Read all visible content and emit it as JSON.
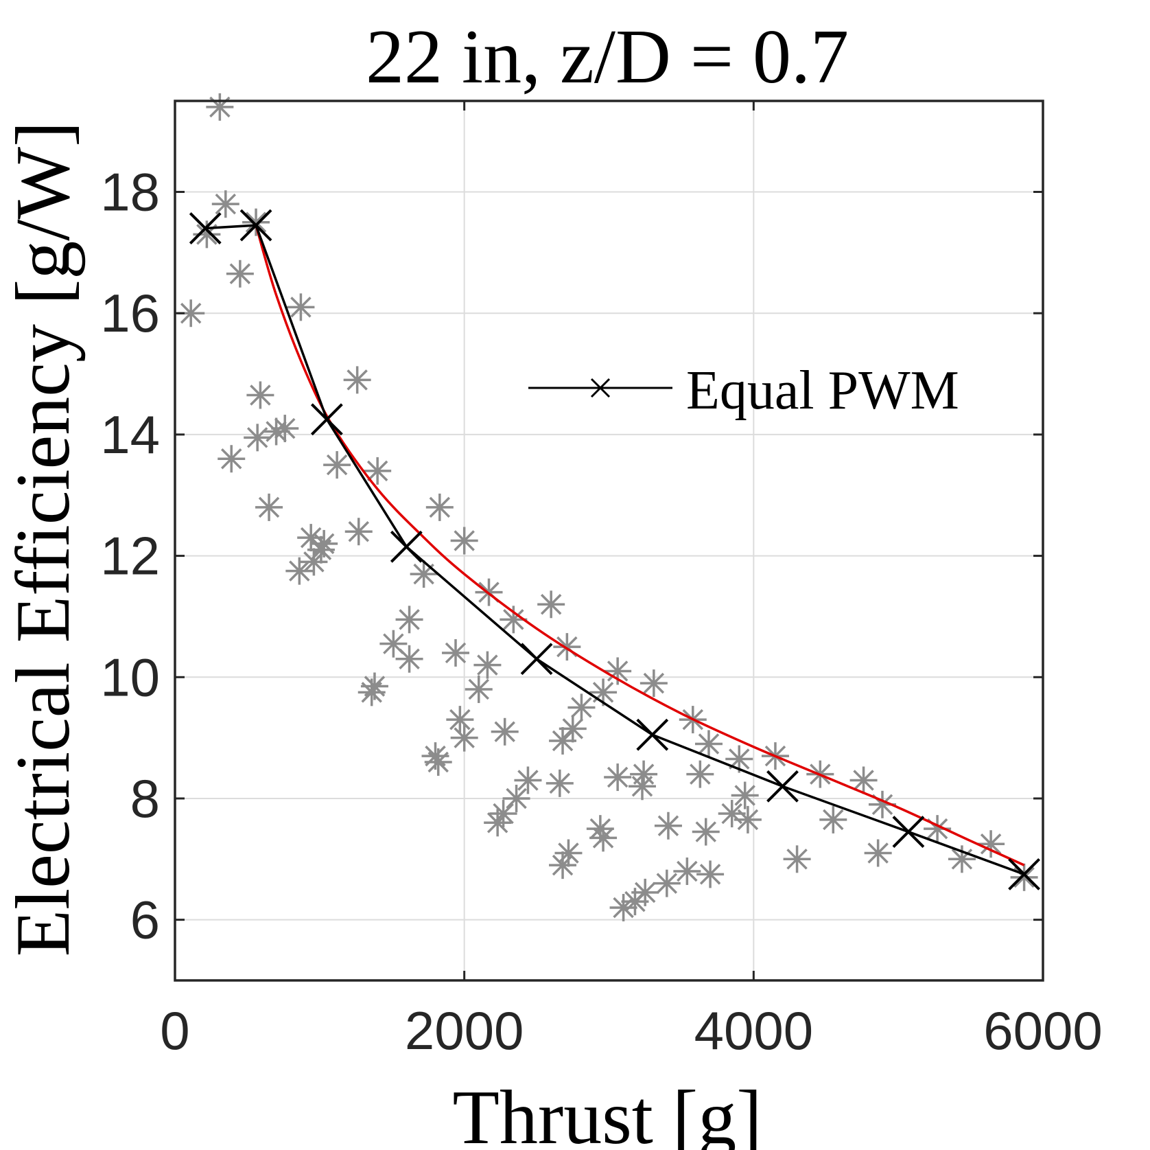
{
  "chart_data": {
    "type": "scatter",
    "title": "22 in, z/D = 0.7",
    "xlabel": "Thrust [g]",
    "ylabel": "Electrical Efficiency [g/W]",
    "xlim": [
      0,
      6000
    ],
    "ylim": [
      5,
      19.5
    ],
    "xticks": [
      0,
      2000,
      4000,
      6000
    ],
    "yticks": [
      6,
      8,
      10,
      12,
      14,
      16,
      18
    ],
    "grid": true,
    "legend": {
      "position": "upper-right-middle",
      "entries": [
        "Equal PWM"
      ]
    },
    "colors": {
      "scatter": "#8c8c8c",
      "equal_pwm": "#000000",
      "fit": "#e00000",
      "grid": "#dcdcdc",
      "axes": "#262626"
    },
    "series": [
      {
        "kind": "scatter",
        "marker": "asterisk",
        "points": [
          [
            310,
            19.4
          ],
          [
            350,
            17.8
          ],
          [
            220,
            17.3
          ],
          [
            560,
            17.5
          ],
          [
            450,
            16.65
          ],
          [
            110,
            16.0
          ],
          [
            870,
            16.1
          ],
          [
            1260,
            14.9
          ],
          [
            590,
            14.65
          ],
          [
            570,
            13.95
          ],
          [
            700,
            14.05
          ],
          [
            760,
            14.1
          ],
          [
            390,
            13.6
          ],
          [
            1120,
            13.5
          ],
          [
            1400,
            13.4
          ],
          [
            650,
            12.8
          ],
          [
            940,
            12.3
          ],
          [
            1030,
            12.2
          ],
          [
            1010,
            12.1
          ],
          [
            1270,
            12.4
          ],
          [
            860,
            11.75
          ],
          [
            960,
            11.9
          ],
          [
            1830,
            12.8
          ],
          [
            2000,
            12.25
          ],
          [
            1720,
            11.7
          ],
          [
            2170,
            11.4
          ],
          [
            2600,
            11.2
          ],
          [
            2340,
            10.95
          ],
          [
            1620,
            10.95
          ],
          [
            1510,
            10.55
          ],
          [
            1620,
            10.3
          ],
          [
            1940,
            10.4
          ],
          [
            2160,
            10.2
          ],
          [
            2710,
            10.5
          ],
          [
            1380,
            9.85
          ],
          [
            1360,
            9.75
          ],
          [
            2100,
            9.8
          ],
          [
            2960,
            9.75
          ],
          [
            3060,
            10.1
          ],
          [
            3310,
            9.9
          ],
          [
            2810,
            9.5
          ],
          [
            1970,
            9.3
          ],
          [
            2000,
            9.0
          ],
          [
            2280,
            9.1
          ],
          [
            2680,
            8.95
          ],
          [
            2750,
            9.15
          ],
          [
            1800,
            8.7
          ],
          [
            1820,
            8.6
          ],
          [
            3580,
            9.3
          ],
          [
            3690,
            8.9
          ],
          [
            3900,
            8.65
          ],
          [
            4150,
            8.7
          ],
          [
            4460,
            8.4
          ],
          [
            4760,
            8.3
          ],
          [
            4890,
            7.9
          ],
          [
            2440,
            8.3
          ],
          [
            2660,
            8.25
          ],
          [
            3060,
            8.35
          ],
          [
            3240,
            8.4
          ],
          [
            3230,
            8.2
          ],
          [
            3630,
            8.4
          ],
          [
            3940,
            8.05
          ],
          [
            3850,
            7.75
          ],
          [
            3960,
            7.65
          ],
          [
            2230,
            7.6
          ],
          [
            2270,
            7.75
          ],
          [
            2360,
            8.0
          ],
          [
            2940,
            7.5
          ],
          [
            2960,
            7.35
          ],
          [
            3410,
            7.55
          ],
          [
            3670,
            7.45
          ],
          [
            4550,
            7.65
          ],
          [
            4300,
            7.0
          ],
          [
            4860,
            7.1
          ],
          [
            5270,
            7.5
          ],
          [
            5640,
            7.25
          ],
          [
            5440,
            7.0
          ],
          [
            2680,
            6.9
          ],
          [
            2720,
            7.1
          ],
          [
            3540,
            6.8
          ],
          [
            3700,
            6.75
          ],
          [
            3400,
            6.6
          ],
          [
            3250,
            6.45
          ],
          [
            3180,
            6.3
          ],
          [
            3100,
            6.2
          ],
          [
            5870,
            6.7
          ]
        ]
      },
      {
        "kind": "line",
        "name": "Equal PWM",
        "marker": "x",
        "points": [
          [
            210,
            17.4
          ],
          [
            560,
            17.45
          ],
          [
            1050,
            14.25
          ],
          [
            1600,
            12.15
          ],
          [
            2500,
            10.3
          ],
          [
            3300,
            9.05
          ],
          [
            4200,
            8.2
          ],
          [
            5070,
            7.45
          ],
          [
            5870,
            6.75
          ]
        ]
      },
      {
        "kind": "fit",
        "points": [
          [
            560,
            17.45
          ],
          [
            700,
            16.3
          ],
          [
            900,
            15.05
          ],
          [
            1100,
            14.1
          ],
          [
            1400,
            13.1
          ],
          [
            1700,
            12.35
          ],
          [
            2000,
            11.7
          ],
          [
            2500,
            10.8
          ],
          [
            3000,
            10.05
          ],
          [
            3500,
            9.4
          ],
          [
            4000,
            8.85
          ],
          [
            4500,
            8.35
          ],
          [
            5000,
            7.85
          ],
          [
            5500,
            7.3
          ],
          [
            5870,
            6.9
          ]
        ]
      }
    ]
  }
}
